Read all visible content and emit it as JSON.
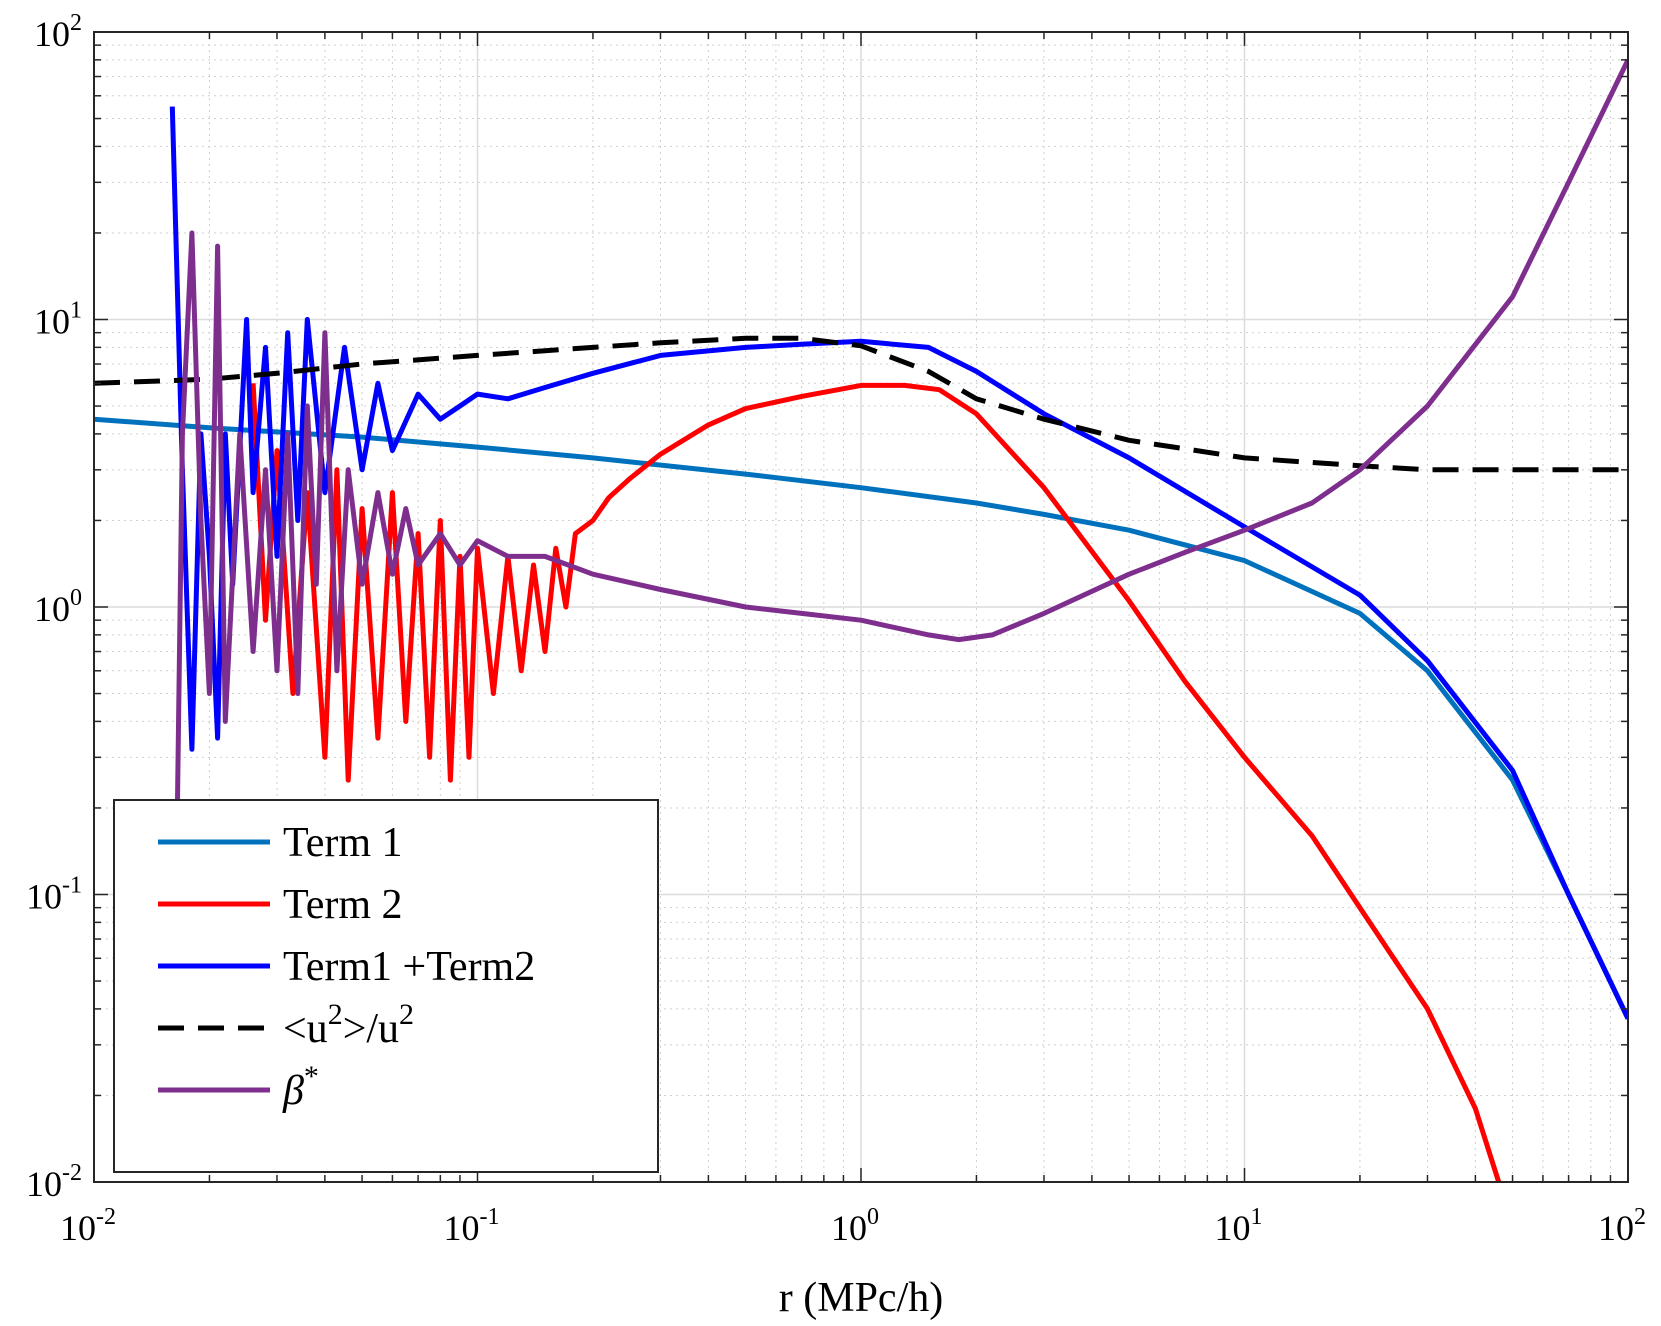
{
  "chart_data": {
    "type": "line",
    "title": "",
    "xlabel": "r (MPc/h)",
    "ylabel": "",
    "xscale": "log",
    "yscale": "log",
    "xlim": [
      0.01,
      100
    ],
    "ylim": [
      0.01,
      100
    ],
    "grid": true,
    "x_ticks": [
      {
        "base": "10",
        "exp": "-2"
      },
      {
        "base": "10",
        "exp": "-1"
      },
      {
        "base": "10",
        "exp": "0"
      },
      {
        "base": "10",
        "exp": "1"
      },
      {
        "base": "10",
        "exp": "2"
      }
    ],
    "y_ticks": [
      {
        "base": "10",
        "exp": "-2"
      },
      {
        "base": "10",
        "exp": "-1"
      },
      {
        "base": "10",
        "exp": "0"
      },
      {
        "base": "10",
        "exp": "1"
      },
      {
        "base": "10",
        "exp": "2"
      }
    ],
    "legend_position": "bottom-left",
    "series": [
      {
        "name": "Term 1",
        "label": {
          "main": "Term 1"
        },
        "color": "#0072BD",
        "dash": "solid",
        "x": [
          0.01,
          0.02,
          0.05,
          0.1,
          0.2,
          0.5,
          1,
          2,
          3,
          5,
          10,
          20,
          30,
          50,
          70,
          100
        ],
        "y": [
          4.5,
          4.2,
          3.9,
          3.6,
          3.3,
          2.9,
          2.6,
          2.3,
          2.1,
          1.85,
          1.45,
          0.95,
          0.6,
          0.25,
          0.1,
          0.037
        ]
      },
      {
        "name": "Term 2",
        "label": {
          "main": "Term 2"
        },
        "color": "#FF0000",
        "dash": "solid",
        "x": [
          0.026,
          0.028,
          0.03,
          0.033,
          0.036,
          0.04,
          0.043,
          0.046,
          0.05,
          0.055,
          0.06,
          0.065,
          0.07,
          0.075,
          0.08,
          0.085,
          0.09,
          0.095,
          0.1,
          0.11,
          0.12,
          0.13,
          0.14,
          0.15,
          0.16,
          0.17,
          0.18,
          0.2,
          0.22,
          0.25,
          0.3,
          0.4,
          0.5,
          0.7,
          1,
          1.3,
          1.6,
          2,
          3,
          5,
          7,
          10,
          15,
          20,
          30,
          40,
          46
        ],
        "y": [
          6,
          0.9,
          3.5,
          0.5,
          2.5,
          0.3,
          3,
          0.25,
          2.2,
          0.35,
          2.5,
          0.4,
          1.8,
          0.3,
          2,
          0.25,
          1.5,
          0.3,
          1.6,
          0.5,
          1.5,
          0.6,
          1.4,
          0.7,
          1.6,
          1.0,
          1.8,
          2.0,
          2.4,
          2.8,
          3.4,
          4.3,
          4.9,
          5.4,
          5.9,
          5.9,
          5.7,
          4.7,
          2.6,
          1.05,
          0.55,
          0.3,
          0.16,
          0.09,
          0.04,
          0.018,
          0.01
        ]
      },
      {
        "name": "Term1 +Term2",
        "label": {
          "main": "Term1 +Term2"
        },
        "color": "#0000FF",
        "dash": "solid",
        "x": [
          0.016,
          0.017,
          0.018,
          0.019,
          0.02,
          0.021,
          0.022,
          0.023,
          0.025,
          0.026,
          0.028,
          0.03,
          0.032,
          0.034,
          0.036,
          0.04,
          0.045,
          0.05,
          0.055,
          0.06,
          0.07,
          0.08,
          0.09,
          0.1,
          0.12,
          0.15,
          0.2,
          0.3,
          0.5,
          0.7,
          1,
          1.5,
          2,
          3,
          5,
          10,
          20,
          30,
          50,
          70,
          100
        ],
        "y": [
          55,
          3,
          0.32,
          4,
          1.5,
          0.35,
          4,
          1.2,
          10,
          2.5,
          8,
          1.5,
          9,
          2,
          10,
          2.5,
          8,
          3,
          6,
          3.5,
          5.5,
          4.5,
          5,
          5.5,
          5.3,
          5.8,
          6.5,
          7.5,
          8.0,
          8.2,
          8.4,
          8.0,
          6.6,
          4.7,
          3.3,
          1.9,
          1.1,
          0.65,
          0.27,
          0.1,
          0.037
        ]
      },
      {
        "name": "<u^2>/u^2",
        "label": {
          "main": "<u",
          "sup1": "2",
          "mid": ">/u",
          "sup2": "2"
        },
        "color": "#000000",
        "dash": "dashed",
        "x": [
          0.01,
          0.02,
          0.03,
          0.05,
          0.1,
          0.2,
          0.3,
          0.5,
          0.7,
          1,
          1.5,
          2,
          3,
          5,
          10,
          20,
          30,
          50,
          100
        ],
        "y": [
          6.0,
          6.2,
          6.5,
          7.0,
          7.5,
          8.0,
          8.3,
          8.6,
          8.6,
          8.1,
          6.6,
          5.3,
          4.5,
          3.8,
          3.3,
          3.1,
          3.0,
          3.0,
          3.0
        ]
      },
      {
        "name": "β*",
        "label": {
          "main": "β",
          "sup1": "*"
        },
        "color": "#7E2F8E",
        "dash": "solid",
        "x": [
          0.0165,
          0.017,
          0.018,
          0.019,
          0.02,
          0.021,
          0.022,
          0.024,
          0.026,
          0.028,
          0.03,
          0.032,
          0.034,
          0.036,
          0.038,
          0.04,
          0.043,
          0.046,
          0.05,
          0.055,
          0.06,
          0.065,
          0.07,
          0.08,
          0.09,
          0.1,
          0.12,
          0.15,
          0.2,
          0.3,
          0.5,
          0.7,
          1,
          1.5,
          1.8,
          2.2,
          3,
          5,
          7,
          10,
          15,
          20,
          30,
          50,
          70,
          100
        ],
        "y": [
          0.2,
          4,
          20,
          2,
          0.5,
          18,
          0.4,
          4,
          0.7,
          3,
          0.6,
          4,
          0.5,
          5,
          1.2,
          9,
          0.6,
          3,
          1.2,
          2.5,
          1.3,
          2.2,
          1.4,
          1.8,
          1.4,
          1.7,
          1.5,
          1.5,
          1.3,
          1.15,
          1.0,
          0.95,
          0.9,
          0.8,
          0.77,
          0.8,
          0.95,
          1.3,
          1.55,
          1.85,
          2.3,
          3.0,
          5.0,
          12,
          30,
          80
        ]
      }
    ]
  }
}
